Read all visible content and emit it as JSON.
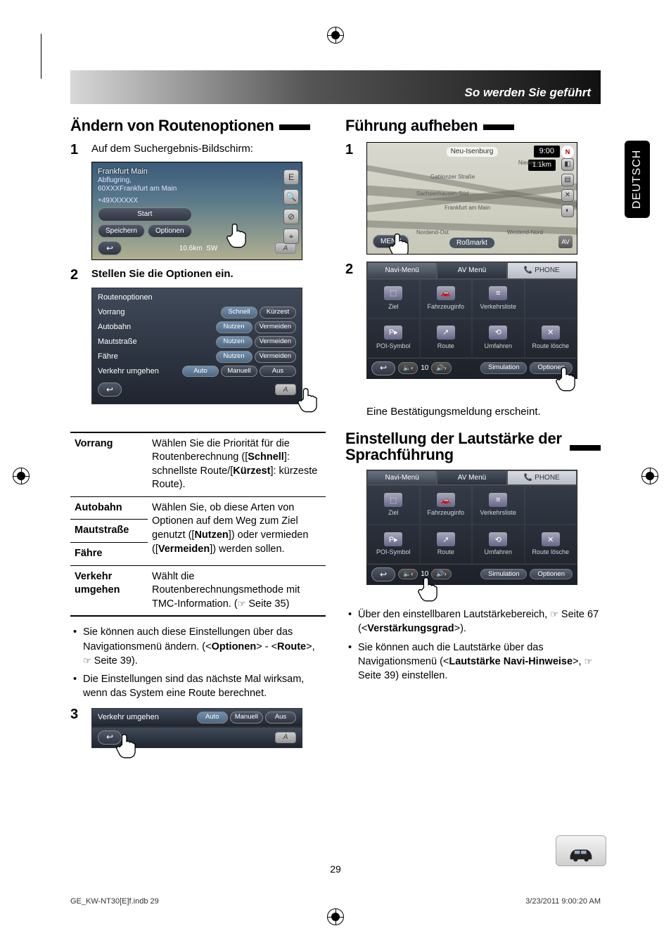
{
  "header": {
    "title": "So werden Sie geführt"
  },
  "side_tab": "DEUTSCH",
  "left": {
    "section_title": "Ändern von Routenoptionen",
    "step1_text": "Auf dem Suchergebnis-Bildschirm:",
    "map1": {
      "title": "Frankfurt Main",
      "sub1": "Abflugring,",
      "sub2": "60XXXFrankfurt am Main",
      "phone": "+49XXXXXX",
      "btn_start": "Start",
      "btn_save": "Speichern",
      "btn_options": "Optionen",
      "distance": "10.6km",
      "dir": "SW",
      "side_e": "E",
      "side_zoom": "⦶"
    },
    "step2_heading": "Stellen Sie die Optionen ein.",
    "panel": {
      "title": "Routenoptionen",
      "rows": [
        {
          "label": "Vorrang",
          "buttons": [
            "Schnell",
            "Kürzest"
          ],
          "sel": 0
        },
        {
          "label": "Autobahn",
          "buttons": [
            "Nutzen",
            "Vermeiden"
          ],
          "sel": 0
        },
        {
          "label": "Mautstraße",
          "buttons": [
            "Nutzen",
            "Vermeiden"
          ],
          "sel": 0
        },
        {
          "label": "Fähre",
          "buttons": [
            "Nutzen",
            "Vermeiden"
          ],
          "sel": 0
        },
        {
          "label": "Verkehr umgehen",
          "buttons": [
            "Auto",
            "Manuell",
            "Aus"
          ],
          "sel": 0
        }
      ],
      "a_btn": "A"
    },
    "defs": {
      "vorrang_term": "Vorrang",
      "vorrang_text": "Wählen Sie die Priorität für die Routenberechnung ([Schnell]: schnellste Route/[Kürzest]: kürzeste Route).",
      "autobahn_term": "Autobahn",
      "mautstrasse_term": "Mautstraße",
      "faehre_term": "Fähre",
      "shared_text_1": "Wählen Sie, ob diese Arten von Optionen auf dem Weg zum Ziel genutzt ([Nutzen]) oder vermieden ([Vermeiden]) werden sollen.",
      "verkehr_term": "Verkehr umgehen",
      "verkehr_text": "Wählt die Routenberechnungsmethode mit TMC-Information. (☞ Seite 35)"
    },
    "bullets": [
      "Sie können auch diese Einstellungen über das Navigationsmenü ändern. (<Optionen> - <Route>, ☞ Seite 39).",
      "Die Einstellungen sind das nächste Mal wirksam, wenn das System eine Route berechnet."
    ],
    "small_panel": {
      "label": "Verkehr umgehen",
      "buttons": [
        "Auto",
        "Manuell",
        "Aus"
      ],
      "a_btn": "A"
    }
  },
  "right": {
    "section1_title": "Führung aufheben",
    "navmap": {
      "time": "9:00",
      "dist": "1.1km",
      "menu": "MENÜ",
      "routeflag": "Neu-Isenburg",
      "center": "Roßmarkt",
      "av": "AV",
      "streets": [
        "Sachsenhausen-Süd",
        "Frankfurt am Main",
        "Gablonzer Straße",
        "Nordend-Ost",
        "Westend-Nord",
        "Niederrad"
      ]
    },
    "menu_panel": {
      "tabs": [
        "Navi-Menü",
        "AV Menü",
        "PHONE"
      ],
      "cells": [
        "Ziel",
        "Fahrzeuginfo",
        "Verkehrsliste",
        "",
        "POI-Symbol",
        "Route",
        "Umfahren",
        "Route lösche"
      ],
      "bottom": {
        "back": "↩",
        "vol_val": "10",
        "sim": "Simulation",
        "opt": "Optionen"
      }
    },
    "confirm_caption": "Eine Bestätigungsmeldung erscheint.",
    "section2_title": "Einstellung der Lautstärke der Sprachführung",
    "vol_bullets": [
      "Über den einstellbaren Lautstärkebereich, ☞ Seite 67 (<Verstärkungsgrad>).",
      "Sie können auch die Lautstärke über das Navigationsmenü (<Lautstärke Navi-Hinweise>, ☞ Seite 39) einstellen."
    ]
  },
  "page_number": "29",
  "footer": {
    "left": "GE_KW-NT30[E]f.indb   29",
    "right": "3/23/2011   9:00:20 AM"
  }
}
